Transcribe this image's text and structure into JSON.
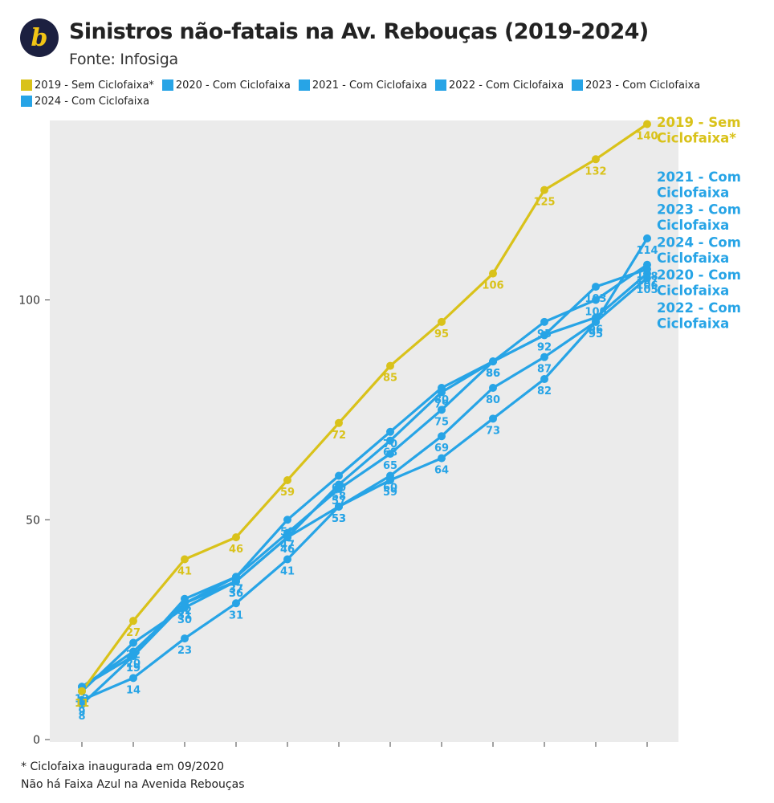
{
  "header": {
    "logo_letter": "b",
    "title": "Sinistros não-fatais na Av. Rebouças (2019-2024)",
    "subtitle": "Fonte: Infosiga"
  },
  "colors": {
    "yellow": "#d9c21a",
    "blue": "#27a4e6",
    "plot_bg": "#ebebeb",
    "logo_bg": "#1c2040",
    "logo_fg": "#f2c515"
  },
  "legend": [
    {
      "label": "2019 - Sem Ciclofaixa*",
      "color": "#d9c21a"
    },
    {
      "label": "2020 - Com Ciclofaixa",
      "color": "#27a4e6"
    },
    {
      "label": "2021 - Com Ciclofaixa",
      "color": "#27a4e6"
    },
    {
      "label": "2022 - Com Ciclofaixa",
      "color": "#27a4e6"
    },
    {
      "label": "2023 - Com Ciclofaixa",
      "color": "#27a4e6"
    },
    {
      "label": "2024 - Com Ciclofaixa",
      "color": "#27a4e6"
    }
  ],
  "chart_data": {
    "type": "line",
    "x": [
      1,
      2,
      3,
      4,
      5,
      6,
      7,
      8,
      9,
      10,
      11,
      12
    ],
    "ylim": [
      0,
      140
    ],
    "yticks": [
      0,
      50,
      100
    ],
    "grid": false,
    "legend_position": "top",
    "series": [
      {
        "name": "2019 - Sem Ciclofaixa*",
        "color": "#d9c21a",
        "values": [
          11,
          27,
          41,
          46,
          59,
          72,
          85,
          95,
          106,
          125,
          132,
          140
        ],
        "end_label": [
          "2019 - Sem",
          "Ciclofaixa*"
        ]
      },
      {
        "name": "2020 - Com Ciclofaixa",
        "color": "#27a4e6",
        "values": [
          12,
          20,
          31,
          37,
          47,
          57,
          65,
          75,
          86,
          92,
          96,
          106
        ],
        "end_label": [
          "2020 - Com",
          "Ciclofaixa"
        ]
      },
      {
        "name": "2021 - Com Ciclofaixa",
        "color": "#27a4e6",
        "values": [
          11,
          22,
          30,
          36,
          46,
          53,
          59,
          64,
          73,
          82,
          95,
          114
        ],
        "end_label": [
          "2021 - Com",
          "Ciclofaixa"
        ]
      },
      {
        "name": "2022 - Com Ciclofaixa",
        "color": "#27a4e6",
        "values": [
          9,
          14,
          23,
          31,
          41,
          53,
          60,
          69,
          80,
          87,
          95,
          105
        ],
        "end_label": [
          "2022 - Com",
          "Ciclofaixa"
        ]
      },
      {
        "name": "2023 - Com Ciclofaixa",
        "color": "#27a4e6",
        "values": [
          8,
          19,
          32,
          37,
          50,
          60,
          70,
          80,
          86,
          95,
          100,
          108
        ],
        "end_label": [
          "2023 - Com",
          "Ciclofaixa"
        ]
      },
      {
        "name": "2024 - Com Ciclofaixa",
        "color": "#27a4e6",
        "values": [
          12,
          19,
          31,
          36,
          46,
          58,
          68,
          79,
          86,
          92,
          103,
          107
        ],
        "end_label": [
          "2024 - Com",
          "Ciclofaixa"
        ]
      }
    ],
    "end_label_order": [
      "2019 - Sem Ciclofaixa*",
      "2021 - Com Ciclofaixa",
      "2023 - Com Ciclofaixa",
      "2024 - Com Ciclofaixa",
      "2020 - Com Ciclofaixa",
      "2022 - Com Ciclofaixa"
    ]
  },
  "footnotes": {
    "line1": "* Ciclofaixa inaugurada em 09/2020",
    "line2": "Não há Faixa Azul na Avenida Rebouças"
  }
}
